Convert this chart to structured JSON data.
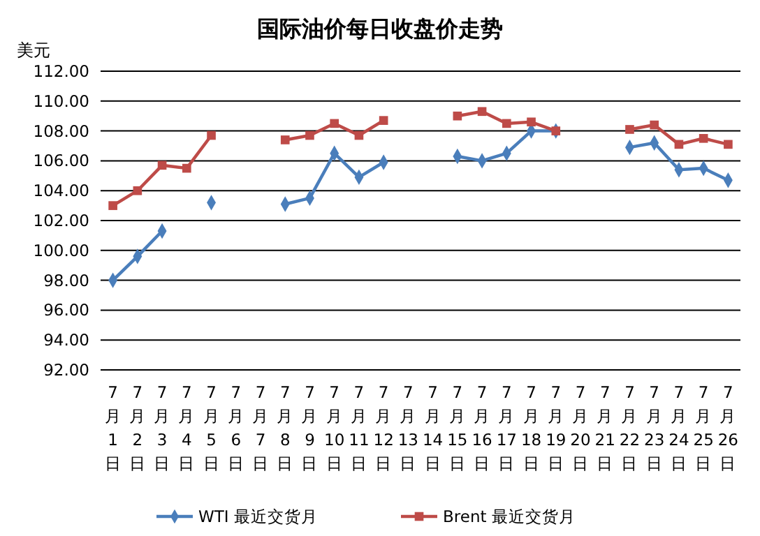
{
  "chart_data": {
    "type": "line",
    "title": "国际油价每日收盘价走势",
    "ylabel": "美元",
    "categories": [
      "7月1日",
      "7月2日",
      "7月3日",
      "7月4日",
      "7月5日",
      "7月6日",
      "7月7日",
      "7月8日",
      "7月9日",
      "7月10日",
      "7月11日",
      "7月12日",
      "7月13日",
      "7月14日",
      "7月15日",
      "7月16日",
      "7月17日",
      "7月18日",
      "7月19日",
      "7月20日",
      "7月21日",
      "7月22日",
      "7月23日",
      "7月24日",
      "7月25日",
      "7月26日"
    ],
    "series": [
      {
        "name": "WTI 最近交货月",
        "color": "#4a7ebb",
        "marker": "diamond",
        "values": [
          98.0,
          99.6,
          101.3,
          null,
          103.2,
          null,
          null,
          103.1,
          103.5,
          106.5,
          104.9,
          105.9,
          null,
          null,
          106.3,
          106.0,
          106.5,
          108.0,
          108.0,
          null,
          null,
          106.9,
          107.2,
          105.4,
          105.5,
          104.7
        ]
      },
      {
        "name": "Brent 最近交货月",
        "color": "#be4b48",
        "marker": "square",
        "values": [
          103.0,
          104.0,
          105.7,
          105.5,
          107.7,
          null,
          null,
          107.4,
          107.7,
          108.5,
          107.7,
          108.7,
          null,
          null,
          109.0,
          109.3,
          108.5,
          108.6,
          108.0,
          null,
          null,
          108.1,
          108.4,
          107.1,
          107.5,
          107.1
        ]
      }
    ],
    "ylim": [
      92,
      112
    ],
    "yticks": [
      {
        "value": 92,
        "label": "92.00"
      },
      {
        "value": 94,
        "label": "94.00"
      },
      {
        "value": 96,
        "label": "96.00"
      },
      {
        "value": 98,
        "label": "98.00"
      },
      {
        "value": 100,
        "label": "100.00"
      },
      {
        "value": 102,
        "label": "102.00"
      },
      {
        "value": 104,
        "label": "104.00"
      },
      {
        "value": 106,
        "label": "106.00"
      },
      {
        "value": 108,
        "label": "108.00"
      },
      {
        "value": 110,
        "label": "110.00"
      },
      {
        "value": 112,
        "label": "112.00"
      }
    ],
    "grid": "y",
    "legend": "bottom"
  }
}
